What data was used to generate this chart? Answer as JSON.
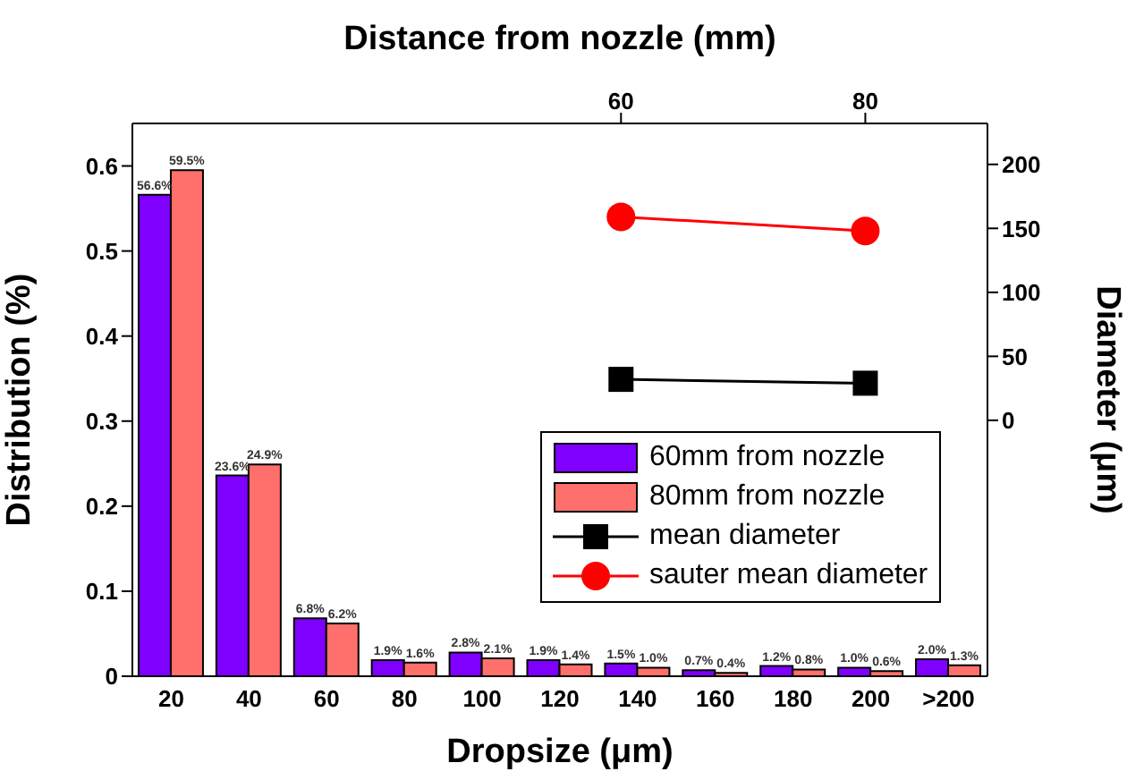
{
  "chart_data": [
    {
      "type": "bar",
      "xlabel": "Dropsize (μm)",
      "ylabel": "Distribution (%)",
      "categories": [
        "20",
        "40",
        "60",
        "80",
        "100",
        "120",
        "140",
        "160",
        "180",
        "200",
        ">200"
      ],
      "series": [
        {
          "name": "60mm from nozzle",
          "color": "#8000ff",
          "values": [
            0.566,
            0.236,
            0.068,
            0.019,
            0.028,
            0.019,
            0.015,
            0.007,
            0.012,
            0.01,
            0.02
          ],
          "value_labels": [
            "56.6%",
            "23.6%",
            "6.8%",
            "1.9%",
            "2.8%",
            "1.9%",
            "1.5%",
            "0.7%",
            "1.2%",
            "1.0%",
            "2.0%"
          ]
        },
        {
          "name": "80mm from nozzle",
          "color": "#ff6f6b",
          "values": [
            0.595,
            0.249,
            0.062,
            0.016,
            0.021,
            0.014,
            0.01,
            0.004,
            0.008,
            0.006,
            0.013
          ],
          "value_labels": [
            "59.5%",
            "24.9%",
            "6.2%",
            "1.6%",
            "2.1%",
            "1.4%",
            "1.0%",
            "0.4%",
            "0.8%",
            "0.6%",
            "1.3%"
          ]
        }
      ],
      "ylim": [
        0,
        0.65
      ],
      "yticks": [
        0,
        0.1,
        0.2,
        0.3,
        0.4,
        0.5,
        0.6
      ],
      "grid": false,
      "legend": "bottom right"
    },
    {
      "type": "line",
      "xlabel": "Distance from nozzle (mm)",
      "y2label": "Diameter (μm)",
      "x": [
        60,
        80
      ],
      "series": [
        {
          "name": "mean diameter",
          "axis": "y2",
          "color": "#000000",
          "marker": "square",
          "values": [
            32,
            29
          ]
        },
        {
          "name": "sauter mean diameter",
          "axis": "y2",
          "color": "#ff0000",
          "marker": "circle",
          "values": [
            159,
            148
          ]
        }
      ],
      "xlim": [
        20,
        90
      ],
      "xticks": [
        60,
        80
      ],
      "y2lim": [
        -200,
        232
      ],
      "y2ticks": [
        0,
        50,
        100,
        150,
        200
      ],
      "grid": false,
      "legend": "bottom right"
    }
  ]
}
